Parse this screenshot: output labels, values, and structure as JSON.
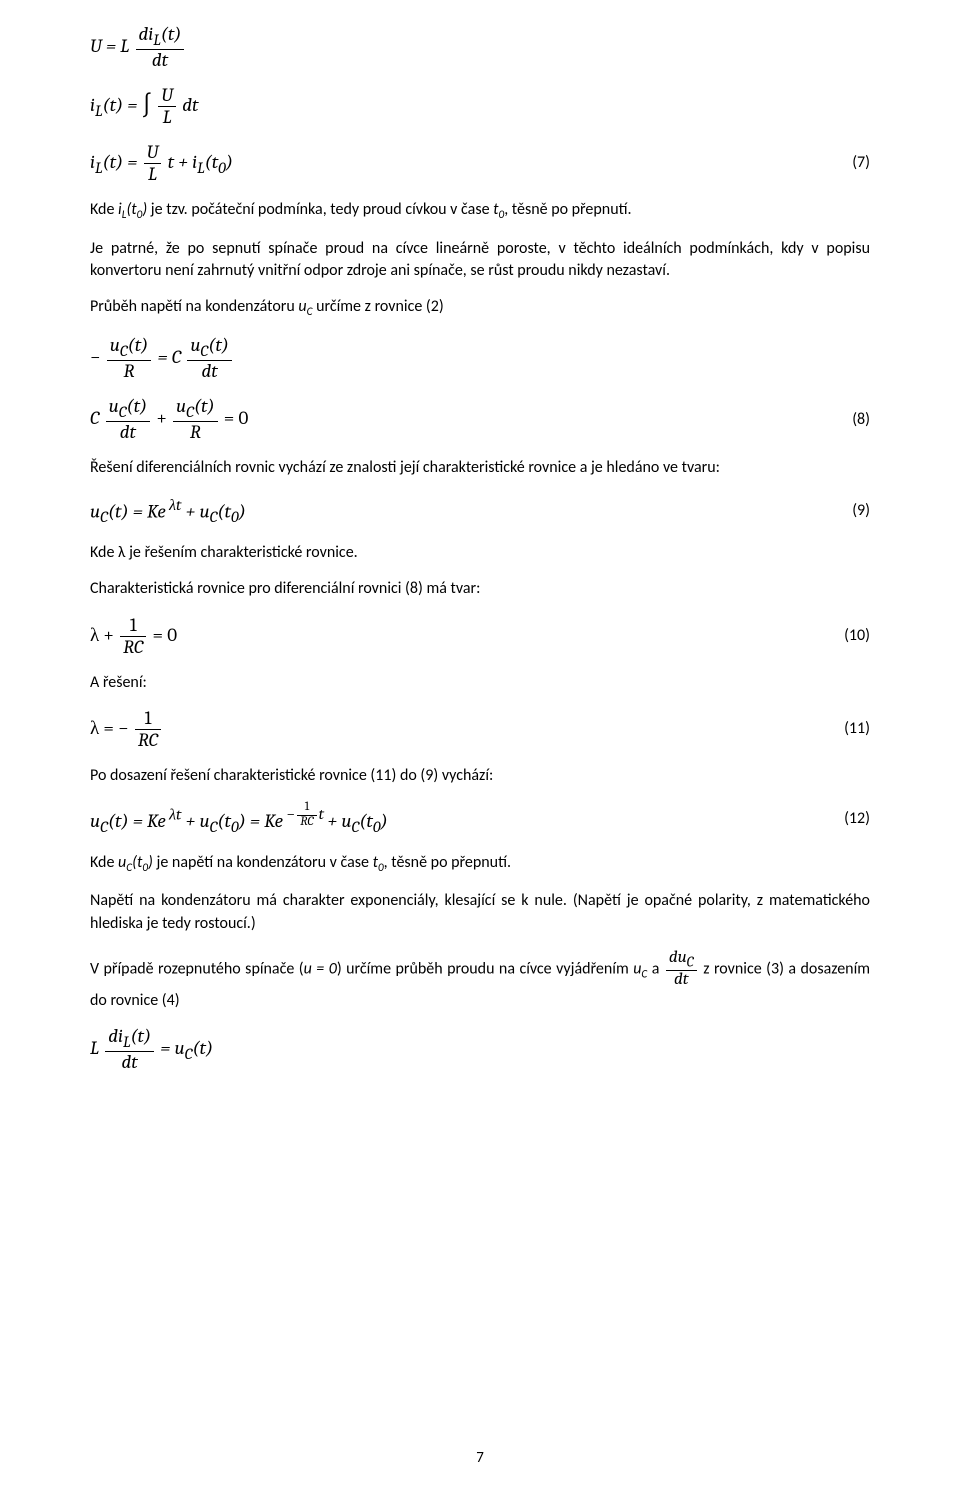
{
  "equations": {
    "eq_a": {
      "lhs": "U",
      "rhs_coeff": "L",
      "frac_top": "di<sub>L</sub>(t)",
      "frac_bot": "dt"
    },
    "eq_b": {
      "lhs": "i<sub>L</sub>(t)",
      "rhs_int": "∫",
      "frac_top": "U",
      "frac_bot": "L",
      "tail": "dt"
    },
    "eq_c": {
      "lhs": "i<sub>L</sub>(t)",
      "frac_top": "U",
      "frac_bot": "L",
      "tail": "t + i<sub>L</sub>(t<sub>0</sub>)",
      "num": "(7)"
    },
    "eq_d": {
      "lhs_prefix": "−",
      "lhs_frac_top": "u<sub>C</sub>(t)",
      "lhs_frac_bot": "R",
      "rhs_coeff": "C",
      "rhs_frac_top": "u<sub>C</sub>(t)",
      "rhs_frac_bot": "dt"
    },
    "eq_e": {
      "term1_coeff": "C",
      "term1_frac_top": "u<sub>C</sub>(t)",
      "term1_frac_bot": "dt",
      "plus": "+",
      "term2_frac_top": "u<sub>C</sub>(t)",
      "term2_frac_bot": "R",
      "rhs": "= 0",
      "num": "(8)"
    },
    "eq_f": {
      "text": "u<sub>C</sub>(t) = Ke<sup> λt</sup> + u<sub>C</sub>(t<sub>0</sub>)",
      "num": "(9)"
    },
    "eq_g": {
      "lhs": "λ +",
      "frac_top": "1",
      "frac_bot": "RC",
      "rhs": "= 0",
      "num": "(10)"
    },
    "eq_h": {
      "lhs": "λ = −",
      "frac_top": "1",
      "frac_bot": "RC",
      "num": "(11)"
    },
    "eq_i": {
      "part1": "u<sub>C</sub>(t) = Ke<sup> λt</sup> + u<sub>C</sub>(t<sub>0</sub>) = Ke",
      "exp_prefix": "−",
      "exp_frac_top": "1",
      "exp_frac_bot": "RC",
      "exp_suffix": "t",
      "part2": " + u<sub>C</sub>(t<sub>0</sub>)",
      "num": "(12)"
    },
    "eq_j": {
      "coeff": "L",
      "frac_top": "di<sub>L</sub>(t)",
      "frac_bot": "dt",
      "rhs": "= u<sub>C</sub>(t)"
    },
    "inline_frac": {
      "top": "du<sub>C</sub>",
      "bot": "dt"
    }
  },
  "paras": {
    "p1_a": "Kde ",
    "p1_b": "i",
    "p1_c": "L",
    "p1_d": "(t",
    "p1_e": "0",
    "p1_f": ")",
    "p1_g": " je tzv. počáteční podmínka, tedy proud cívkou v čase ",
    "p1_h": "t",
    "p1_i": "0",
    "p1_j": ", těsně po přepnutí.",
    "p2": "Je patrné, že po sepnutí spínače proud na cívce lineárně poroste, v těchto ideálních podmínkách, kdy v popisu konvertoru není zahrnutý vnitřní odpor zdroje ani spínače, se růst proudu nikdy nezastaví.",
    "p3_a": "Průběh napětí na kondenzátoru ",
    "p3_b": "u",
    "p3_c": "C",
    "p3_d": " určíme z rovnice (2)",
    "p4": "Řešení diferenciálních rovnic vychází ze znalosti její charakteristické rovnice a je hledáno ve tvaru:",
    "p5": "Kde λ je řešením charakteristické rovnice.",
    "p6": "Charakteristická rovnice pro diferenciální rovnici (8) má tvar:",
    "p7": "A řešení:",
    "p8": "Po dosazení řešení charakteristické rovnice (11) do (9) vychází:",
    "p9_a": "Kde ",
    "p9_b": "u",
    "p9_c": "C",
    "p9_d": "(t",
    "p9_e": "0",
    "p9_f": ")",
    "p9_g": " je napětí na kondenzátoru v čase ",
    "p9_h": "t",
    "p9_i": "0",
    "p9_j": ", těsně po přepnutí.",
    "p10": "Napětí na kondenzátoru má charakter exponenciály, klesající se k nule. (Napětí je opačné polarity, z matematického hlediska je tedy rostoucí.)",
    "p11_a": "V případě rozepnutého spínače (",
    "p11_b": "u = 0",
    "p11_c": ") určíme průběh proudu na cívce vyjádřením ",
    "p11_d": "u",
    "p11_e": "C",
    "p11_f": " a ",
    "p11_g": " z rovnice (3) a dosazením do rovnice (4)"
  },
  "page_number": "7",
  "style": {
    "body_font_size": 16,
    "math_font_size": 19,
    "text_color": "#000000",
    "background_color": "#ffffff"
  }
}
